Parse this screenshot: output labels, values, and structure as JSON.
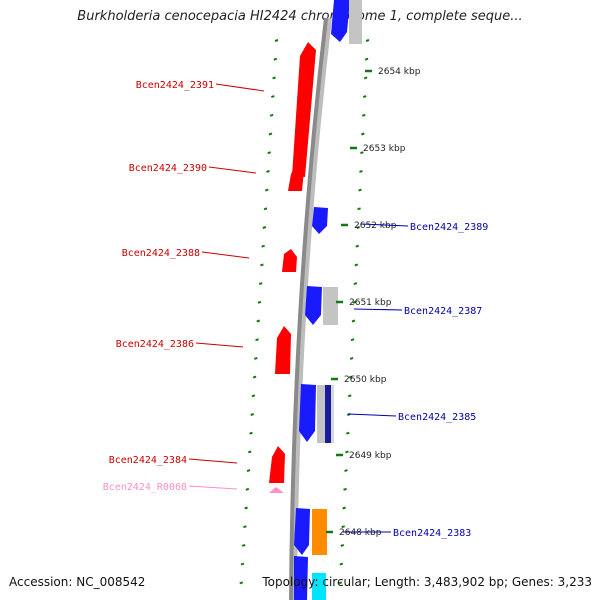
{
  "title": "Burkholderia cenocepacia HI2424 chromosome 1, complete seque...",
  "footer": {
    "accession": "Accession: NC_008542",
    "topology": "Topology: circular; Length: 3,483,902 bp; Genes: 3,233"
  },
  "colors": {
    "forward_gene": "#ff0000",
    "reverse_gene": "#1a1aff",
    "pseudo_gene": "#c4c4c4",
    "rna_gene": "#ff8fc8",
    "orange_gene": "#ff8c00",
    "cyan_gene": "#00e5ff",
    "tick": "#137a13",
    "backbone": "#8a8a8a"
  },
  "ticks": [
    {
      "label": "2654 kbp"
    },
    {
      "label": "2653 kbp"
    },
    {
      "label": "2652 kbp"
    },
    {
      "label": "2651 kbp"
    },
    {
      "label": "2650 kbp"
    },
    {
      "label": "2649 kbp"
    },
    {
      "label": "2648 kbp"
    }
  ],
  "genes_left": [
    {
      "label": "Bcen2424_2391",
      "color": "#cc0000"
    },
    {
      "label": "Bcen2424_2390",
      "color": "#cc0000"
    },
    {
      "label": "Bcen2424_2388",
      "color": "#cc0000"
    },
    {
      "label": "Bcen2424_2386",
      "color": "#cc0000"
    },
    {
      "label": "Bcen2424_2384",
      "color": "#cc0000"
    },
    {
      "label": "Bcen2424_R0068",
      "color": "#ff8fc8"
    }
  ],
  "genes_right": [
    {
      "label": "Bcen2424_2389",
      "color": "#0000aa"
    },
    {
      "label": "Bcen2424_2387",
      "color": "#0000aa"
    },
    {
      "label": "Bcen2424_2385",
      "color": "#0000aa"
    },
    {
      "label": "Bcen2424_2383",
      "color": "#0000aa"
    }
  ]
}
